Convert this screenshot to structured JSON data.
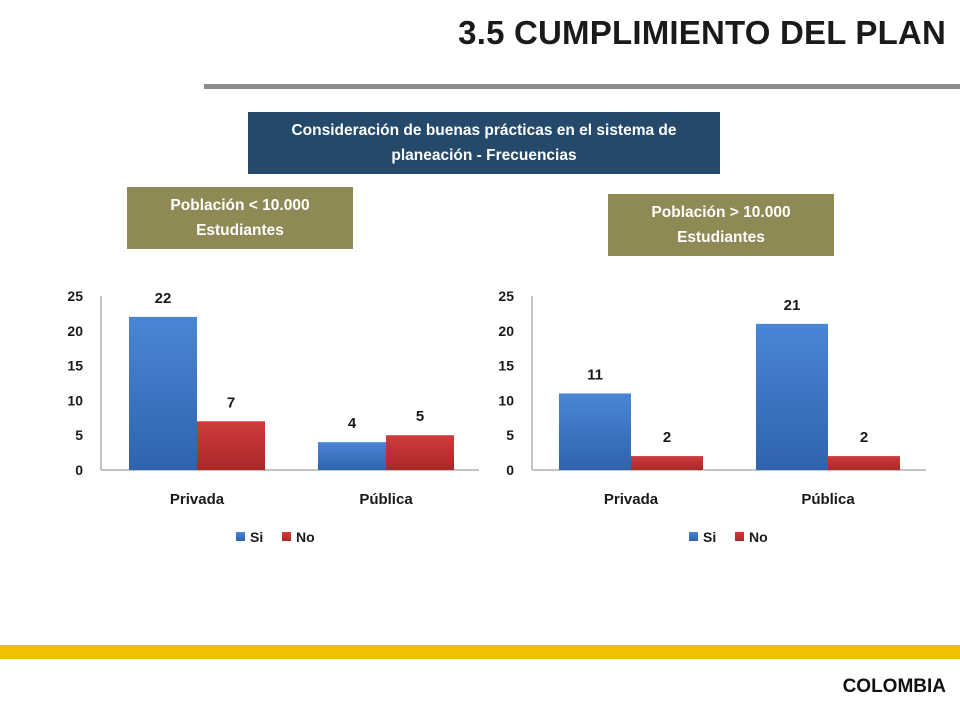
{
  "header": {
    "title": "3.5 CUMPLIMIENTO DEL PLAN"
  },
  "subtitle": "Consideración de buenas prácticas en el sistema de planeación - Frecuencias",
  "groups": [
    {
      "label": "Población < 10.000 Estudiantes"
    },
    {
      "label": "Población > 10.000 Estudiantes"
    }
  ],
  "colors": {
    "si": "#3c78c8",
    "no": "#c83232"
  },
  "chart_data": [
    {
      "type": "bar",
      "categories": [
        "Privada",
        "Pública"
      ],
      "series": [
        {
          "name": "Si",
          "values": [
            22,
            4
          ]
        },
        {
          "name": "No",
          "values": [
            7,
            5
          ]
        }
      ],
      "ylim": [
        0,
        25
      ],
      "yticks": [
        0,
        5,
        10,
        15,
        20,
        25
      ],
      "legend": "bottom",
      "grid": false
    },
    {
      "type": "bar",
      "categories": [
        "Privada",
        "Pública"
      ],
      "series": [
        {
          "name": "Si",
          "values": [
            11,
            21
          ]
        },
        {
          "name": "No",
          "values": [
            2,
            2
          ]
        }
      ],
      "ylim": [
        0,
        25
      ],
      "yticks": [
        0,
        5,
        10,
        15,
        20,
        25
      ],
      "legend": "bottom",
      "grid": false
    }
  ],
  "footer": {
    "country": "COLOMBIA"
  }
}
